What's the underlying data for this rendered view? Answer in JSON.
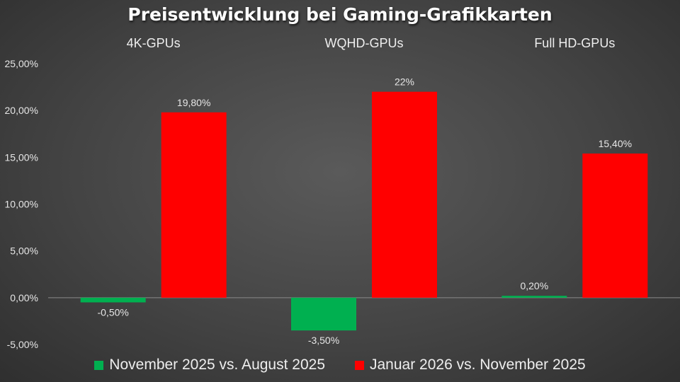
{
  "chart_data": {
    "type": "bar",
    "title": "Preisentwicklung bei Gaming-Grafikkarten",
    "categories": [
      "4K-GPUs",
      "WQHD-GPUs",
      "Full HD-GPUs"
    ],
    "series": [
      {
        "name": "November 2025 vs. August 2025",
        "color": "#00b050",
        "values": [
          -0.5,
          -3.5,
          0.2
        ],
        "labels": [
          "-0,50%",
          "-3,50%",
          "0,20%"
        ]
      },
      {
        "name": "Januar 2026 vs. November 2025",
        "color": "#ff0000",
        "values": [
          19.8,
          22,
          15.4
        ],
        "labels": [
          "19,80%",
          "22%",
          "15,40%"
        ]
      }
    ],
    "ylim": [
      -5,
      25
    ],
    "yticks": [
      25,
      20,
      15,
      10,
      5,
      0,
      -5
    ],
    "ytick_labels": [
      "25,00%",
      "20,00%",
      "15,00%",
      "10,00%",
      "5,00%",
      "0,00%",
      "-5,00%"
    ],
    "grid": false,
    "legend_position": "bottom"
  }
}
